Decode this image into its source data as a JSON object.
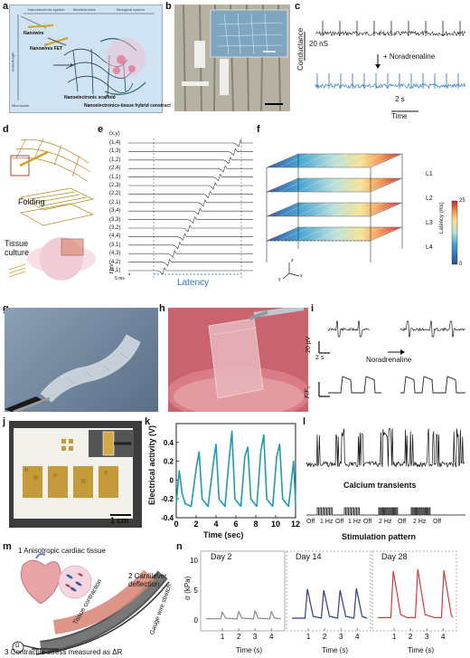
{
  "panels": {
    "a": {
      "label": "a",
      "axis_top_left": "Nanoelectronic system",
      "axis_top_mid": "Bioelectronics",
      "axis_top_right": "Biological system",
      "axis_side": "Scale/length",
      "axis_bottom": "Microscale",
      "nanowire": "Nanowire",
      "fet": "Nanowires FET",
      "scaffold": "Nanoelectronic scaffold",
      "hybrid": "Nanoelectronics-tissue hybrid construct"
    },
    "b": {
      "label": "b"
    },
    "c": {
      "label": "c",
      "ylabel": "Conductance",
      "scale_y": "20 nS",
      "drug": "+ Noradrenaline",
      "scale_x": "2 s",
      "xlabel": "Time"
    },
    "d": {
      "label": "d",
      "step1": "Folding",
      "step2": "Tissue culture"
    },
    "e": {
      "label": "e",
      "header": "(x,y)",
      "rows": [
        "(1,4)",
        "(1,3)",
        "(1,2)",
        "(2,4)",
        "(1,1)",
        "(2,3)",
        "(2,2)",
        "(2,1)",
        "(3,4)",
        "(3,3)",
        "(3,2)",
        "(4,4)",
        "(3,1)",
        "(4,3)",
        "(4,2)",
        "(4,1)"
      ],
      "scale_v": "1 mV",
      "scale_t": "5 ms",
      "latency": "Latency"
    },
    "f": {
      "label": "f",
      "layers": [
        "L1",
        "L2",
        "L3",
        "L4"
      ],
      "cbar_title": "Latency (ms)",
      "cbar_max": "25",
      "cbar_min": "0",
      "ax_x": "x",
      "ax_y": "y",
      "ax_z": "z"
    },
    "g": {
      "label": "g"
    },
    "h": {
      "label": "h"
    },
    "i": {
      "label": "i",
      "scale_v": "20 µV",
      "scale_t": "2 s",
      "drug": "Noradrenaline",
      "ylabel": "F/F₀"
    },
    "j": {
      "label": "j",
      "scale": "1 cm"
    },
    "k": {
      "label": "k",
      "ylabel": "Electrical activity (V)",
      "xlabel": "Time (sec)"
    },
    "l": {
      "label": "l",
      "transients": "Calcium transients",
      "pattern": [
        "Off",
        "1 Hz",
        "Off",
        "1 Hz",
        "Off",
        "2 Hz",
        "Off",
        "2 Hz",
        "Off"
      ],
      "stim_label": "Stimulation pattern"
    },
    "m": {
      "label": "m",
      "step1": "1 Anisotropic cardiac tissue",
      "step2": "2 Cantilever deflection",
      "contraction": "Tissue contraction",
      "gauge": "Gauge wire stretch",
      "step3": "3 Contractile stress measured as ΔR",
      "ohm": "Ω"
    },
    "n": {
      "label": "n",
      "ylabel": "σ (kPa)",
      "xlabel": "Time (s)",
      "days": [
        "Day 2",
        "Day 14",
        "Day 28"
      ]
    }
  },
  "colors": {
    "blue_trace": "#2a6fb8",
    "teal_trace": "#1f9bb0",
    "navy_trace": "#2c3f8f",
    "red_trace": "#d63a3a",
    "gray_trace": "#8a8a8a"
  },
  "chart_data": [
    {
      "type": "line",
      "xlabel": "Time (sec)",
      "ylabel": "Electrical activity (V)",
      "x_ticks": [
        0,
        2,
        4,
        6,
        8,
        10,
        12
      ],
      "y_ticks": [
        -0.4,
        -0.2,
        0,
        0.2,
        0.4
      ],
      "xlim": [
        0,
        12
      ],
      "ylim": [
        -0.4,
        0.6
      ],
      "x": [
        0,
        0.3,
        0.6,
        0.9,
        1.5,
        2.0,
        2.3,
        2.6,
        3.2,
        3.7,
        4.0,
        4.3,
        4.9,
        5.3,
        5.6,
        5.9,
        6.5,
        6.9,
        7.2,
        7.5,
        8.1,
        8.5,
        8.8,
        9.1,
        9.7,
        10.1,
        10.4,
        10.7,
        11.3,
        11.8,
        12
      ],
      "y": [
        -0.25,
        0.1,
        -0.15,
        -0.25,
        -0.28,
        0.12,
        0.3,
        -0.2,
        -0.28,
        0.15,
        0.38,
        -0.2,
        -0.28,
        0.2,
        0.52,
        -0.2,
        -0.28,
        0.25,
        0.35,
        -0.2,
        -0.28,
        0.3,
        0.48,
        -0.2,
        -0.28,
        0.25,
        0.38,
        -0.2,
        -0.28,
        0.2,
        -0.25
      ]
    },
    {
      "type": "line",
      "title": "Day 2",
      "xlabel": "Time (s)",
      "ylabel": "σ (kPa)",
      "y_ticks": [
        0,
        5,
        10
      ],
      "x_ticks": [
        1,
        2,
        3,
        4
      ],
      "x": [
        0,
        0.9,
        1.0,
        1.2,
        1.9,
        2.0,
        2.2,
        2.9,
        3.0,
        3.2,
        3.9,
        4.0,
        4.2,
        4.6
      ],
      "y": [
        0.2,
        0.2,
        1.3,
        0.3,
        0.2,
        1.4,
        0.3,
        0.2,
        1.5,
        0.3,
        0.2,
        1.4,
        0.3,
        0.2
      ]
    },
    {
      "type": "line",
      "title": "Day 14",
      "xlabel": "Time (s)",
      "x_ticks": [
        1,
        2,
        3,
        4
      ],
      "x": [
        0,
        0.8,
        0.95,
        1.3,
        1.8,
        1.95,
        2.3,
        2.8,
        2.95,
        3.3,
        3.8,
        3.95,
        4.3,
        4.6
      ],
      "y": [
        0.3,
        0.3,
        5.2,
        0.6,
        0.3,
        5.0,
        0.6,
        0.3,
        5.0,
        0.6,
        0.3,
        5.3,
        0.6,
        0.3
      ]
    },
    {
      "type": "line",
      "title": "Day 28",
      "xlabel": "Time (s)",
      "x_ticks": [
        1,
        2,
        3,
        4
      ],
      "x": [
        0,
        0.8,
        0.95,
        1.4,
        1.8,
        2.3,
        2.45,
        2.9,
        3.5,
        3.9,
        4.05,
        4.5,
        4.6
      ],
      "y": [
        0.4,
        0.4,
        8.2,
        0.9,
        0.4,
        0.4,
        8.5,
        0.9,
        0.4,
        0.4,
        8.3,
        0.9,
        0.4
      ]
    }
  ]
}
